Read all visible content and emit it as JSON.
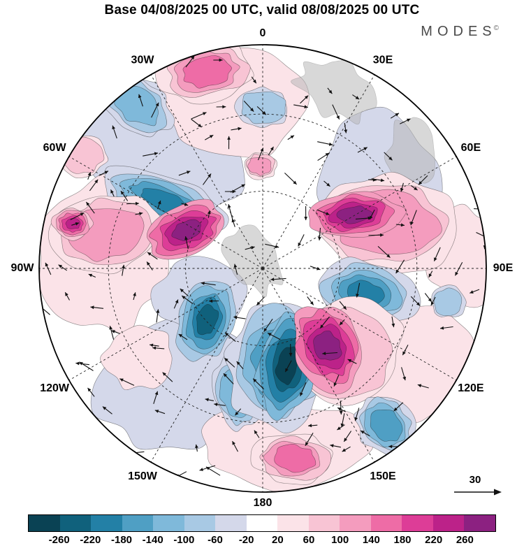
{
  "header": {
    "title": "Base 04/08/2025 00 UTC, valid 08/08/2025 00 UTC",
    "logo": "MODES",
    "logo_mark": "©"
  },
  "reference_arrow": {
    "label": "30"
  },
  "chart_data": {
    "type": "heatmap",
    "subtype": "filled-contour-polar-map-with-wind-vectors",
    "title": "Base 04/08/2025 00 UTC, valid 08/08/2025 00 UTC",
    "projection": "north-polar-stereographic",
    "contour_levels": [
      -260,
      -220,
      -180,
      -140,
      -100,
      -60,
      -20,
      20,
      60,
      100,
      140,
      180,
      220,
      260
    ],
    "colorbar_colors": [
      "#0a4254",
      "#10617c",
      "#2380a6",
      "#4f9fc4",
      "#7fb9da",
      "#a8c9e4",
      "#d4d8ea",
      "#ffffff",
      "#fbe3e8",
      "#f8c4d4",
      "#f49cbe",
      "#ee6ca6",
      "#dd3d97",
      "#bc2289",
      "#8c2181"
    ],
    "longitude_labels": [
      "0",
      "30E",
      "60E",
      "90E",
      "120E",
      "150E",
      "180",
      "150W",
      "120W",
      "90W",
      "60W",
      "30W"
    ],
    "vector_reference_value": 30,
    "position_units": "fractions of map radius; x toward 90E, y toward 180",
    "background_patches": [
      {
        "x": -0.45,
        "y": -0.55,
        "rx": 0.42,
        "ry": 0.28,
        "rot": 30,
        "peak": -40
      },
      {
        "x": 0.52,
        "y": -0.4,
        "rx": 0.26,
        "ry": 0.3,
        "rot": -15,
        "peak": -40
      },
      {
        "x": -0.12,
        "y": -0.74,
        "rx": 0.34,
        "ry": 0.24,
        "rot": 0,
        "peak": 40
      },
      {
        "x": -0.72,
        "y": -0.05,
        "rx": 0.28,
        "ry": 0.34,
        "rot": 0,
        "peak": 40
      },
      {
        "x": -0.38,
        "y": 0.52,
        "rx": 0.36,
        "ry": 0.28,
        "rot": -20,
        "peak": -40
      },
      {
        "x": 0.1,
        "y": 0.8,
        "rx": 0.36,
        "ry": 0.2,
        "rot": 0,
        "peak": 40
      },
      {
        "x": 0.68,
        "y": 0.42,
        "rx": 0.26,
        "ry": 0.26,
        "rot": 0,
        "peak": 40
      },
      {
        "x": 0.9,
        "y": -0.05,
        "rx": 0.16,
        "ry": 0.22,
        "rot": 0,
        "peak": 40
      },
      {
        "x": -0.28,
        "y": 0.12,
        "rx": 0.2,
        "ry": 0.16,
        "rot": -10,
        "peak": -40
      },
      {
        "x": -0.55,
        "y": 0.4,
        "rx": 0.16,
        "ry": 0.14,
        "rot": 0,
        "peak": 40
      }
    ],
    "land_shading": [
      {
        "x": 0.33,
        "y": -0.8,
        "rx": 0.18,
        "ry": 0.12,
        "rot": 25
      },
      {
        "x": 0.66,
        "y": -0.52,
        "rx": 0.1,
        "ry": 0.15,
        "rot": -10
      },
      {
        "x": -0.04,
        "y": -0.03,
        "rx": 0.11,
        "ry": 0.15,
        "rot": -35
      },
      {
        "x": 0.47,
        "y": 0.36,
        "rx": 0.08,
        "ry": 0.1,
        "rot": 0
      }
    ],
    "features": [
      {
        "x": -0.56,
        "y": -0.73,
        "rx": 0.17,
        "ry": 0.11,
        "rot": 35,
        "peak": -120
      },
      {
        "x": 0.0,
        "y": -0.72,
        "rx": 0.12,
        "ry": 0.09,
        "rot": 0,
        "peak": -80
      },
      {
        "x": -0.25,
        "y": -0.88,
        "rx": 0.21,
        "ry": 0.13,
        "rot": -8,
        "peak": 160
      },
      {
        "x": -0.8,
        "y": -0.5,
        "rx": 0.11,
        "ry": 0.09,
        "rot": -30,
        "peak": 80
      },
      {
        "x": -0.44,
        "y": -0.3,
        "rx": 0.3,
        "ry": 0.12,
        "rot": 22,
        "peak": -180
      },
      {
        "x": -0.7,
        "y": -0.16,
        "rx": 0.24,
        "ry": 0.17,
        "rot": -12,
        "peak": 120
      },
      {
        "x": -0.85,
        "y": -0.2,
        "rx": 0.09,
        "ry": 0.07,
        "rot": 0,
        "peak": 240
      },
      {
        "x": -0.34,
        "y": -0.17,
        "rx": 0.19,
        "ry": 0.11,
        "rot": -22,
        "peak": 280
      },
      {
        "x": -0.01,
        "y": -0.46,
        "rx": 0.075,
        "ry": 0.06,
        "rot": 0,
        "peak": 120
      },
      {
        "x": 0.55,
        "y": -0.2,
        "rx": 0.34,
        "ry": 0.21,
        "rot": 8,
        "peak": 120
      },
      {
        "x": 0.41,
        "y": -0.24,
        "rx": 0.21,
        "ry": 0.1,
        "rot": -6,
        "peak": 280
      },
      {
        "x": 0.46,
        "y": 0.11,
        "rx": 0.23,
        "ry": 0.14,
        "rot": 12,
        "peak": -200
      },
      {
        "x": 0.83,
        "y": 0.15,
        "rx": 0.08,
        "ry": 0.07,
        "rot": 0,
        "peak": -80
      },
      {
        "x": -0.25,
        "y": 0.23,
        "rx": 0.13,
        "ry": 0.18,
        "rot": 18,
        "peak": -240
      },
      {
        "x": -0.12,
        "y": 0.56,
        "rx": 0.1,
        "ry": 0.16,
        "rot": -15,
        "peak": -120
      },
      {
        "x": 0.07,
        "y": 0.42,
        "rx": 0.22,
        "ry": 0.3,
        "rot": 10,
        "peak": -160
      },
      {
        "x": 0.38,
        "y": 0.38,
        "rx": 0.25,
        "ry": 0.24,
        "rot": -25,
        "peak": 80
      },
      {
        "x": 0.11,
        "y": 0.43,
        "rx": 0.13,
        "ry": 0.24,
        "rot": 10,
        "peak": -280
      },
      {
        "x": 0.29,
        "y": 0.35,
        "rx": 0.15,
        "ry": 0.2,
        "rot": -28,
        "peak": 280
      },
      {
        "x": 0.55,
        "y": 0.7,
        "rx": 0.12,
        "ry": 0.15,
        "rot": -35,
        "peak": -160
      },
      {
        "x": 0.14,
        "y": 0.85,
        "rx": 0.18,
        "ry": 0.11,
        "rot": 3,
        "peak": 160
      }
    ]
  }
}
